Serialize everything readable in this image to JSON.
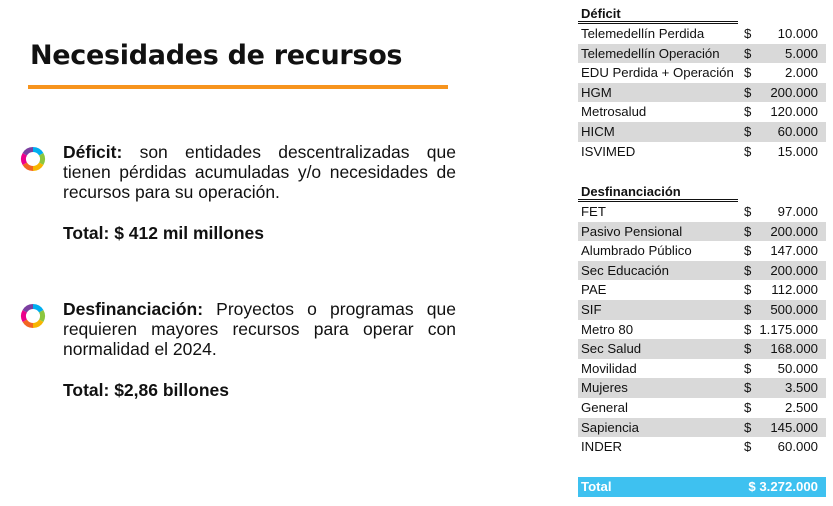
{
  "title": "Necesidades de recursos",
  "colors": {
    "accent_rule": "#f7941d",
    "row_shade": "#d9d9d9",
    "total_bar": "#3ec1f0",
    "icon_ring": [
      "#00aeef",
      "#8cc63f",
      "#f7b500",
      "#f26522",
      "#ec008c",
      "#7b3fa0"
    ]
  },
  "icons": {
    "bullet": "ring-icon"
  },
  "bullets": [
    {
      "label": "Déficit:",
      "text": " son entidades descentralizadas que tienen pérdidas acumuladas y/o necesidades de recursos para su operación.",
      "total": "Total: $ 412 mil millones"
    },
    {
      "label": "Desfinanciación:",
      "text": " Proyectos o programas que requieren mayores recursos para operar con normalidad el 2024.",
      "total": "Total: $2,86 billones"
    }
  ],
  "deficit_table": {
    "header": "Déficit",
    "rows": [
      {
        "name": "Telemedellín Perdida",
        "cur": "$",
        "val": "10.000",
        "shaded": false
      },
      {
        "name": "Telemedellín Operación",
        "cur": "$",
        "val": "5.000",
        "shaded": true
      },
      {
        "name": "EDU Perdida + Operación",
        "cur": "$",
        "val": "2.000",
        "shaded": false
      },
      {
        "name": "HGM",
        "cur": "$",
        "val": "200.000",
        "shaded": true
      },
      {
        "name": "Metrosalud",
        "cur": "$",
        "val": "120.000",
        "shaded": false
      },
      {
        "name": "HICM",
        "cur": "$",
        "val": "60.000",
        "shaded": true
      },
      {
        "name": "ISVIMED",
        "cur": "$",
        "val": "15.000",
        "shaded": false
      }
    ]
  },
  "desfinanciacion_table": {
    "header": "Desfinanciación",
    "rows": [
      {
        "name": "FET",
        "cur": "$",
        "val": "97.000",
        "shaded": false
      },
      {
        "name": "Pasivo Pensional",
        "cur": "$",
        "val": "200.000",
        "shaded": true
      },
      {
        "name": "Alumbrado Público",
        "cur": "$",
        "val": "147.000",
        "shaded": false
      },
      {
        "name": "Sec Educación",
        "cur": "$",
        "val": "200.000",
        "shaded": true
      },
      {
        "name": "PAE",
        "cur": "$",
        "val": "112.000",
        "shaded": false
      },
      {
        "name": "SIF",
        "cur": "$",
        "val": "500.000",
        "shaded": true
      },
      {
        "name": "Metro 80",
        "cur": "$",
        "val": "1.175.000",
        "shaded": false
      },
      {
        "name": "Sec Salud",
        "cur": "$",
        "val": "168.000",
        "shaded": true
      },
      {
        "name": "Movilidad",
        "cur": "$",
        "val": "50.000",
        "shaded": false
      },
      {
        "name": "Mujeres",
        "cur": "$",
        "val": "3.500",
        "shaded": true
      },
      {
        "name": "General",
        "cur": "$",
        "val": "2.500",
        "shaded": false
      },
      {
        "name": "Sapiencia",
        "cur": "$",
        "val": "145.000",
        "shaded": true
      },
      {
        "name": "INDER",
        "cur": "$",
        "val": "60.000",
        "shaded": false
      }
    ]
  },
  "grand_total": {
    "label": "Total",
    "amount": "$ 3.272.000"
  }
}
